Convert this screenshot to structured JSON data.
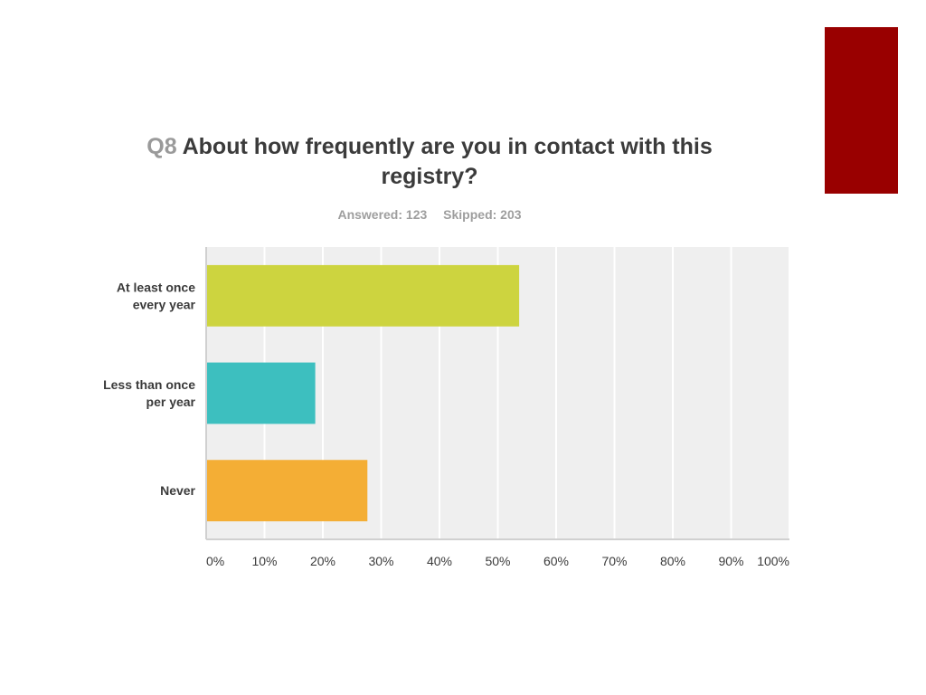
{
  "slide": {
    "accent_color": "#990000"
  },
  "header": {
    "question_number": "Q8",
    "question_text": "About how frequently are you in contact with this registry?",
    "answered": "Answered: 123",
    "skipped": "Skipped: 203"
  },
  "chart_data": {
    "type": "bar",
    "orientation": "horizontal",
    "categories": [
      [
        "At least once",
        "every year"
      ],
      [
        "Less than once",
        "per year"
      ],
      [
        "Never"
      ]
    ],
    "values": [
      53.66,
      18.7,
      27.64
    ],
    "colors": [
      "#cdd43f",
      "#3dbfbf",
      "#f4ae35"
    ],
    "xlim": [
      0,
      100
    ],
    "x_ticks": [
      "0%",
      "10%",
      "20%",
      "30%",
      "40%",
      "50%",
      "60%",
      "70%",
      "80%",
      "90%",
      "100%"
    ],
    "grid": true,
    "plot_background": "#efefef",
    "legend": "none"
  }
}
